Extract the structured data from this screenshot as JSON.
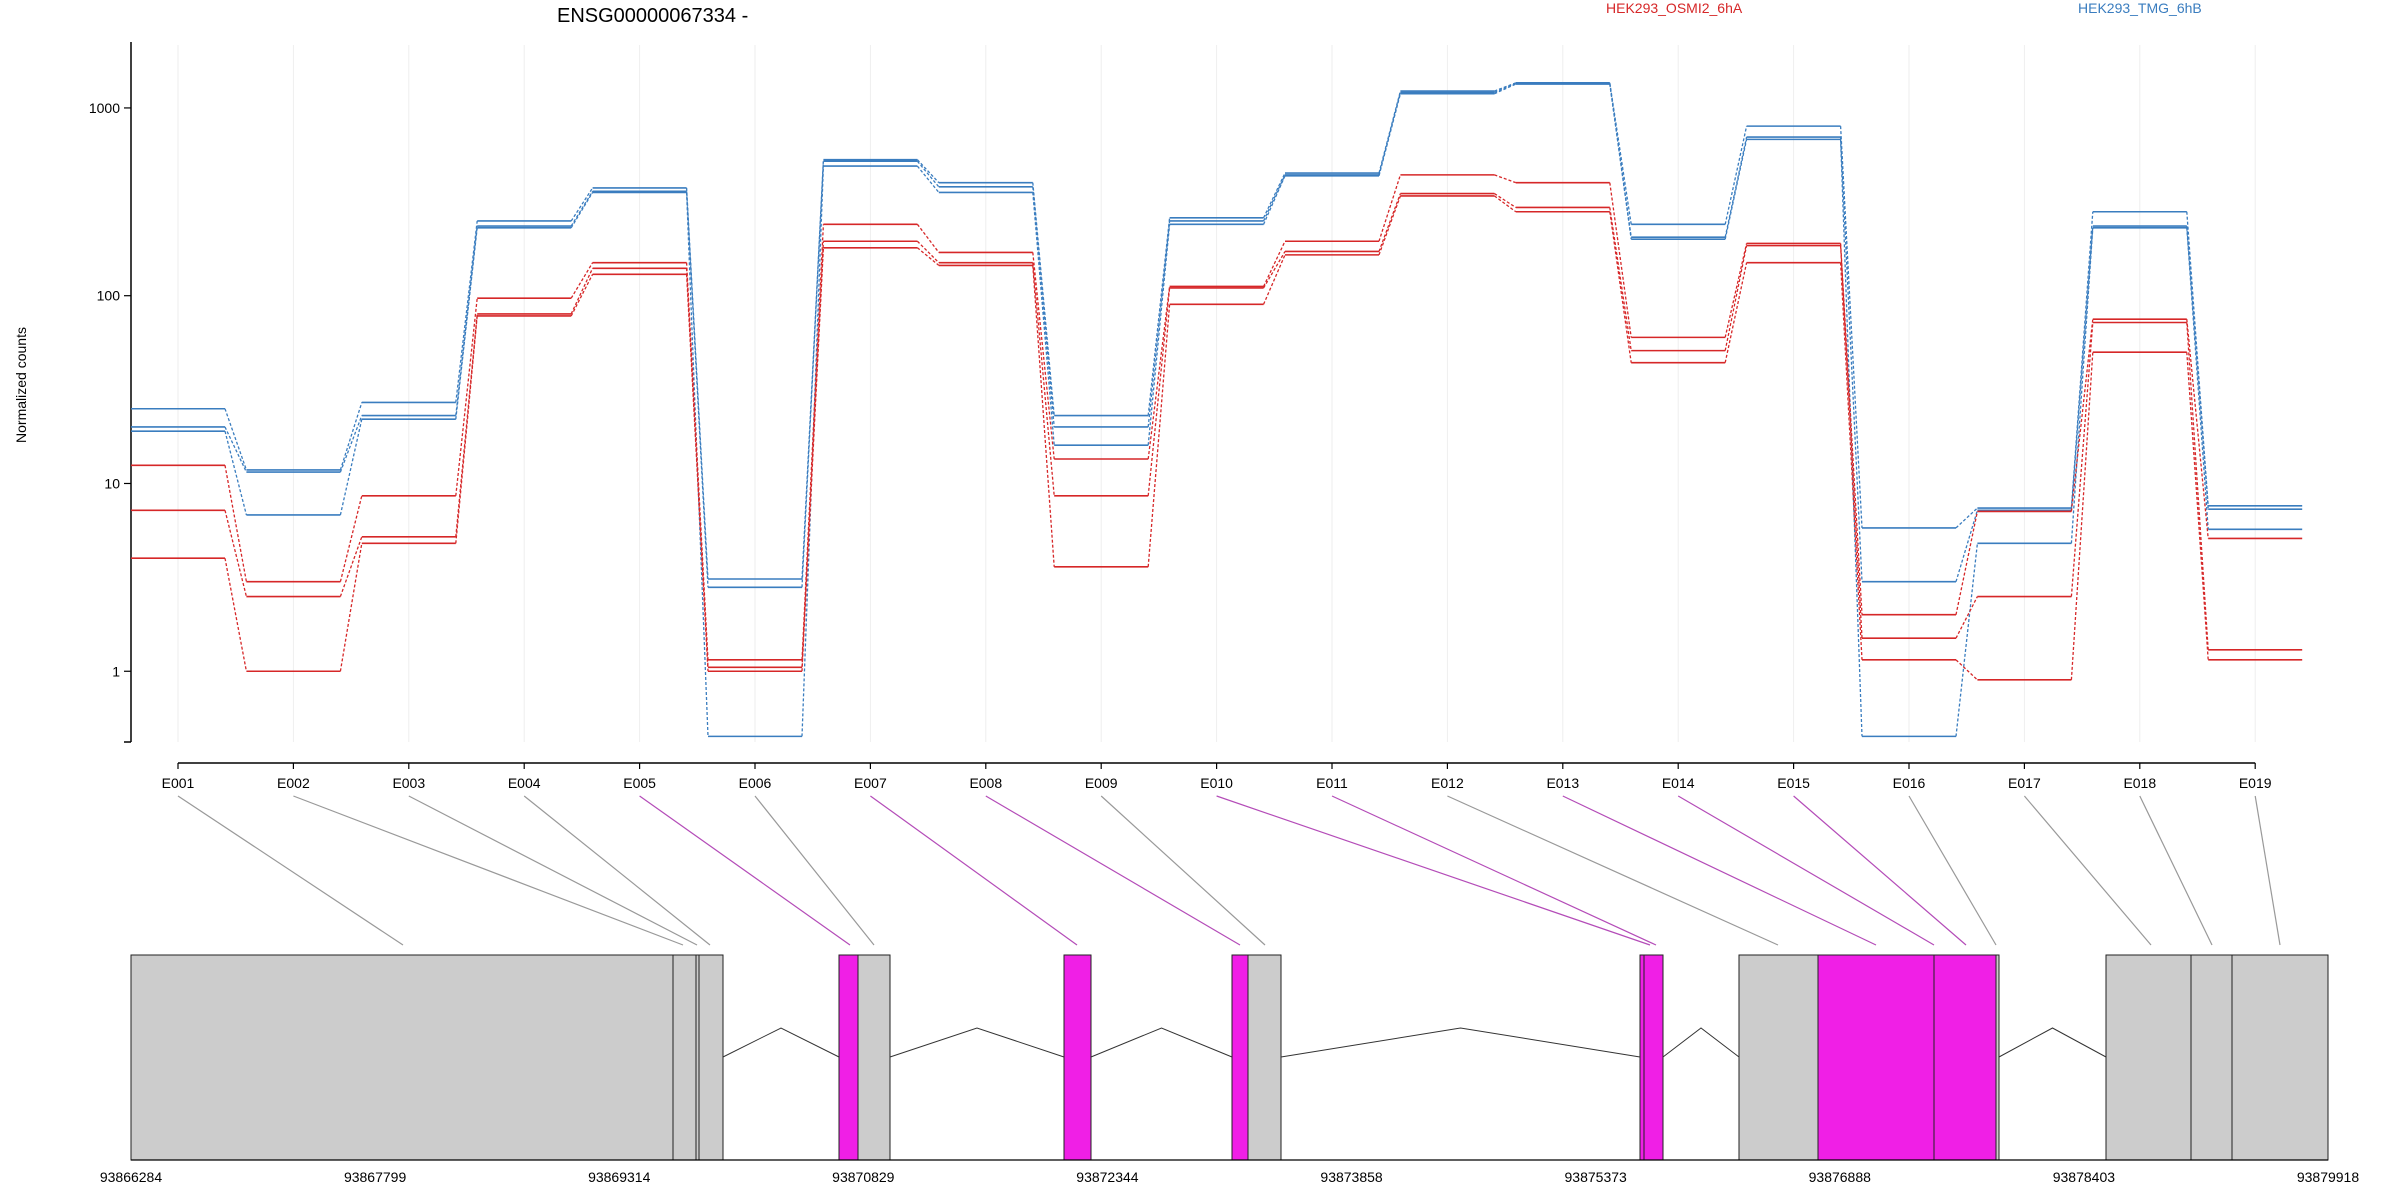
{
  "chart_data": {
    "type": "line",
    "title": "ENSG00000067334 -",
    "ylabel": "Normalized counts",
    "yscale": "log",
    "ylim": [
      0.42,
      1800
    ],
    "yticks": [
      1,
      10,
      100,
      1000
    ],
    "yticklabels": [
      "1",
      "10",
      "100",
      "1000"
    ],
    "categories": [
      "E001",
      "E002",
      "E003",
      "E004",
      "E005",
      "E006",
      "E007",
      "E008",
      "E009",
      "E010",
      "E011",
      "E012",
      "E013",
      "E014",
      "E015",
      "E016",
      "E017",
      "E018",
      "E019"
    ],
    "legend": [
      {
        "name": "HEK293_OSMI2_6hA",
        "color": "#d62728"
      },
      {
        "name": "HEK293_TMG_6hB",
        "color": "#3a7dbf"
      }
    ],
    "colors": {
      "osmi": "#d62728",
      "tmg": "#3a7dbf",
      "exon_highlight": "#f01fe6",
      "exon_default": "#cccccc"
    },
    "series": [
      {
        "group": "HEK293_TMG_6hB",
        "values": [
          25,
          11.8,
          27,
          250,
          375,
          3.1,
          530,
          400,
          23,
          260,
          450,
          1230,
          1360,
          240,
          800,
          5.8,
          7.4,
          280,
          7.6
        ]
      },
      {
        "group": "HEK293_TMG_6hB",
        "values": [
          20,
          11.5,
          23,
          235,
          360,
          2.8,
          520,
          380,
          20,
          250,
          440,
          1210,
          1350,
          205,
          700,
          3.0,
          7.2,
          235,
          7.3
        ]
      },
      {
        "group": "HEK293_TMG_6hB",
        "values": [
          19,
          6.8,
          22,
          230,
          355,
          0.45,
          490,
          355,
          16,
          240,
          435,
          1190,
          1340,
          200,
          680,
          0.45,
          4.8,
          230,
          5.7
        ]
      },
      {
        "group": "HEK293_OSMI2_6hA",
        "values": [
          12.5,
          3.0,
          8.6,
          97,
          150,
          1.15,
          240,
          170,
          13.5,
          112,
          195,
          440,
          400,
          60,
          190,
          2.0,
          7.1,
          75,
          5.1
        ]
      },
      {
        "group": "HEK293_OSMI2_6hA",
        "values": [
          7.2,
          2.5,
          5.2,
          80,
          140,
          1.05,
          195,
          150,
          8.6,
          110,
          172,
          350,
          295,
          51,
          185,
          1.5,
          2.5,
          72,
          1.3
        ]
      },
      {
        "group": "HEK293_OSMI2_6hA",
        "values": [
          4.0,
          1.0,
          4.8,
          78,
          130,
          1.0,
          180,
          145,
          3.6,
          90,
          165,
          340,
          280,
          44,
          150,
          1.15,
          0.9,
          50,
          1.15
        ]
      }
    ],
    "gene_model": {
      "coordinate_labels": [
        "93866284",
        "93867799",
        "93869314",
        "93870829",
        "93872344",
        "93873858",
        "93875373",
        "93876888",
        "93878403",
        "93879918"
      ],
      "highlighted_exons": [
        "E005",
        "E007",
        "E008",
        "E010",
        "E011",
        "E013",
        "E014",
        "E015"
      ]
    }
  }
}
